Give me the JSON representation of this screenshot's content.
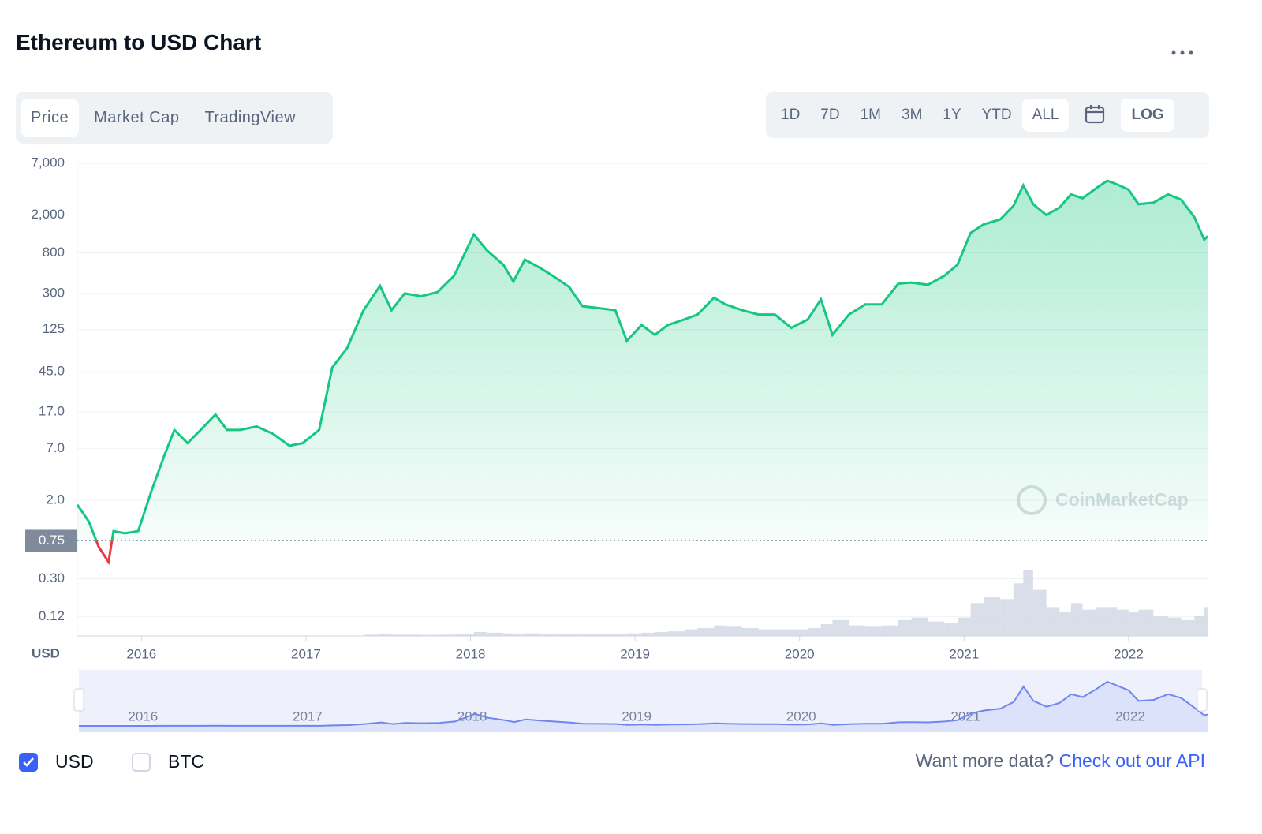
{
  "header": {
    "title": "Ethereum to USD Chart"
  },
  "tabs": [
    "Price",
    "Market Cap",
    "TradingView"
  ],
  "active_tab": 0,
  "ranges": [
    "1D",
    "7D",
    "1M",
    "3M",
    "1Y",
    "YTD",
    "ALL"
  ],
  "active_range": 6,
  "log_button": "LOG",
  "chart_data": {
    "type": "line",
    "log_scale": true,
    "grid": true,
    "y_unit_label": "USD",
    "watermark": "CoinMarketCap",
    "baseline": 0.75,
    "x": [
      2015.61,
      2015.68,
      2015.74,
      2015.8,
      2015.83,
      2015.9,
      2015.98,
      2016.06,
      2016.14,
      2016.2,
      2016.28,
      2016.36,
      2016.45,
      2016.52,
      2016.6,
      2016.7,
      2016.8,
      2016.9,
      2016.98,
      2017.08,
      2017.16,
      2017.25,
      2017.35,
      2017.45,
      2017.52,
      2017.6,
      2017.7,
      2017.8,
      2017.9,
      2018.02,
      2018.1,
      2018.2,
      2018.26,
      2018.33,
      2018.42,
      2018.5,
      2018.6,
      2018.68,
      2018.78,
      2018.88,
      2018.95,
      2019.04,
      2019.12,
      2019.2,
      2019.3,
      2019.38,
      2019.48,
      2019.55,
      2019.65,
      2019.75,
      2019.85,
      2019.95,
      2020.05,
      2020.13,
      2020.2,
      2020.3,
      2020.4,
      2020.5,
      2020.6,
      2020.68,
      2020.78,
      2020.88,
      2020.96,
      2021.04,
      2021.12,
      2021.22,
      2021.3,
      2021.36,
      2021.42,
      2021.5,
      2021.58,
      2021.65,
      2021.72,
      2021.8,
      2021.87,
      2021.93,
      2022.0,
      2022.06,
      2022.15,
      2022.24,
      2022.32,
      2022.4,
      2022.46,
      2022.48
    ],
    "series": [
      {
        "name": "Price",
        "color": "#16c784",
        "below_color": "#ea3943",
        "values": [
          1.8,
          1.2,
          0.65,
          0.45,
          0.95,
          0.9,
          0.95,
          2.5,
          6,
          11,
          8,
          11,
          16,
          11,
          11,
          12,
          10,
          7.5,
          8,
          11,
          50,
          80,
          200,
          360,
          200,
          300,
          280,
          310,
          460,
          1250,
          850,
          600,
          400,
          680,
          560,
          460,
          350,
          220,
          210,
          200,
          95,
          140,
          110,
          140,
          160,
          180,
          270,
          230,
          200,
          180,
          180,
          130,
          160,
          260,
          110,
          180,
          230,
          230,
          380,
          390,
          370,
          460,
          600,
          1300,
          1600,
          1800,
          2500,
          4100,
          2600,
          2000,
          2400,
          3300,
          3000,
          3800,
          4600,
          4200,
          3700,
          2600,
          2700,
          3300,
          2900,
          1900,
          1100,
          1200
        ]
      },
      {
        "axis": "y2",
        "color": "#cfd6e4",
        "values": [
          0.01,
          0.01,
          0.01,
          0.01,
          0.01,
          0.01,
          0.01,
          0.02,
          0.03,
          0.05,
          0.03,
          0.04,
          0.05,
          0.03,
          0.03,
          0.03,
          0.02,
          0.02,
          0.02,
          0.03,
          0.2,
          0.3,
          1,
          1.5,
          1,
          1,
          0.8,
          1,
          1.5,
          3,
          2.5,
          2,
          1.5,
          2,
          1.5,
          1.2,
          1.5,
          1.5,
          1.2,
          1.2,
          2,
          2.5,
          3,
          3.5,
          5,
          6,
          8,
          7,
          6,
          5,
          5,
          5,
          6,
          9,
          12,
          8,
          7,
          8,
          12,
          14,
          11,
          10,
          14,
          25,
          30,
          28,
          40,
          50,
          35,
          22,
          18,
          25,
          20,
          22,
          22,
          20,
          18,
          20,
          15,
          14,
          12,
          15,
          22,
          18
        ]
      }
    ],
    "xlim": [
      2015.61,
      2022.48
    ],
    "xticks": [
      2016,
      2017,
      2018,
      2019,
      2020,
      2021,
      2022
    ],
    "ylim": [
      0.075,
      7000
    ],
    "yticks": [
      0.12,
      {
        "value": 0.3,
        "label": "0.30"
      },
      0.75,
      {
        "value": 2,
        "label": "2.0"
      },
      {
        "value": 7,
        "label": "7.0"
      },
      {
        "value": 17,
        "label": "17.0"
      },
      {
        "value": 45,
        "label": "45.0"
      },
      125,
      300,
      800,
      {
        "value": 2000,
        "label": "2,000"
      },
      {
        "value": 7000,
        "label": "7,000"
      }
    ],
    "y2lim": [
      0,
      60
    ]
  },
  "currencies": [
    {
      "label": "USD",
      "checked": true
    },
    {
      "label": "BTC",
      "checked": false
    }
  ],
  "footer": {
    "text": "Want more data?",
    "link": "Check out our API"
  }
}
